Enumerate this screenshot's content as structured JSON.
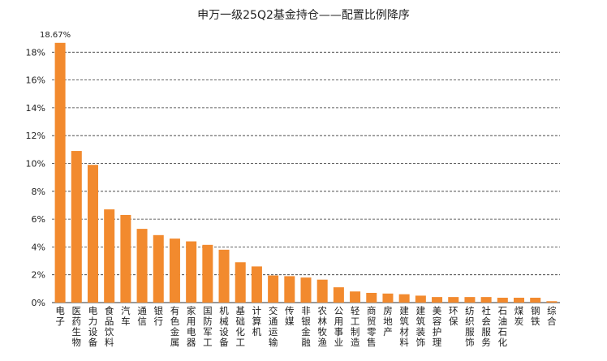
{
  "chart_data": {
    "type": "bar",
    "title": "申万一级25Q2基金持仓——配置比例降序",
    "categories": [
      "电子",
      "医药生物",
      "电力设备",
      "食品饮料",
      "汽车",
      "通信",
      "银行",
      "有色金属",
      "家用电器",
      "国防军工",
      "机械设备",
      "基础化工",
      "计算机",
      "交通运输",
      "传媒",
      "非银金融",
      "农林牧渔",
      "公用事业",
      "轻工制造",
      "商贸零售",
      "房地产",
      "建筑材料",
      "建筑装饰",
      "美容护理",
      "环保",
      "纺织服饰",
      "社会服务",
      "石油石化",
      "煤炭",
      "钢铁",
      "综合"
    ],
    "values": [
      18.67,
      10.9,
      9.9,
      6.7,
      6.3,
      5.3,
      4.85,
      4.6,
      4.4,
      4.15,
      3.8,
      2.9,
      2.6,
      1.95,
      1.9,
      1.8,
      1.65,
      1.1,
      0.8,
      0.7,
      0.65,
      0.6,
      0.5,
      0.4,
      0.4,
      0.4,
      0.4,
      0.35,
      0.35,
      0.35,
      0.1
    ],
    "data_labels": [
      {
        "index": 0,
        "text": "18.67%"
      }
    ],
    "ylim": [
      0,
      20
    ],
    "yticks": [
      "0%",
      "2%",
      "4%",
      "6%",
      "8%",
      "10%",
      "12%",
      "14%",
      "16%",
      "18%"
    ],
    "grid": true,
    "bar_color": "#F28A2E"
  }
}
